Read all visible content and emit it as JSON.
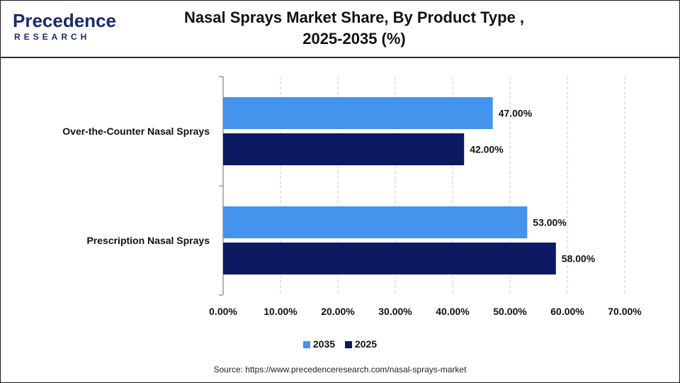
{
  "brand": {
    "logo_word": "Precedence",
    "logo_sub": "RESEARCH"
  },
  "title_line1": "Nasal Sprays Market Share, By Product Type ,",
  "title_line2": "2025-2035 (%)",
  "source": "Source: https://www.precedenceresearch.com/nasal-sprays-market",
  "colors": {
    "series_2035": "#4493ec",
    "series_2025": "#0c1a63",
    "brand": "#1a2a6c"
  },
  "chart_data": {
    "type": "bar",
    "orientation": "horizontal",
    "categories": [
      "Over-the-Counter Nasal Sprays",
      "Prescription Nasal Sprays"
    ],
    "series": [
      {
        "name": "2035",
        "values": [
          47.0,
          53.0
        ],
        "labels": [
          "47.00%",
          "53.00%"
        ],
        "color": "#4493ec"
      },
      {
        "name": "2025",
        "values": [
          42.0,
          58.0
        ],
        "labels": [
          "42.00%",
          "58.00%"
        ],
        "color": "#0c1a63"
      }
    ],
    "x_ticks": [
      "0.00%",
      "10.00%",
      "20.00%",
      "30.00%",
      "40.00%",
      "50.00%",
      "60.00%",
      "70.00%"
    ],
    "xlim": [
      0,
      70
    ],
    "grid": true,
    "legend_position": "bottom-center"
  }
}
